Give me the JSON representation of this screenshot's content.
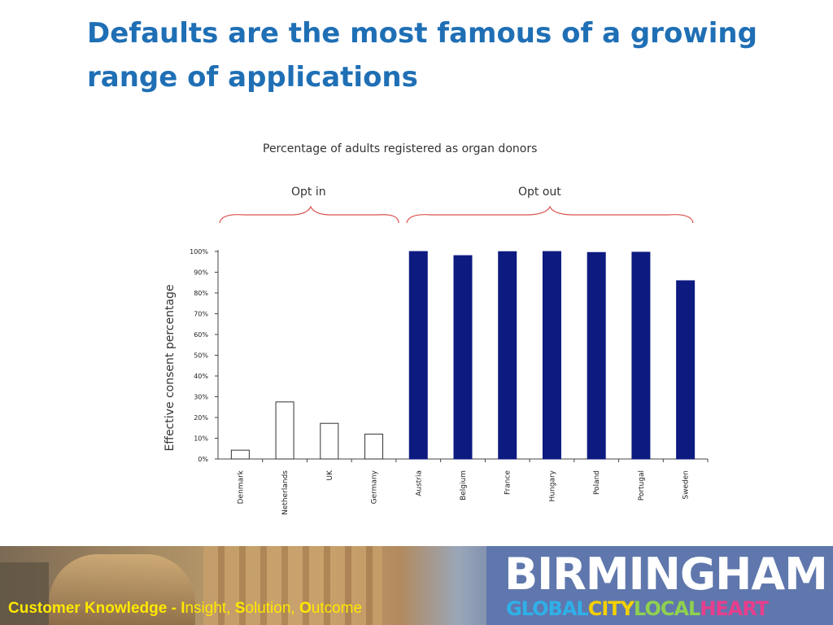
{
  "slide": {
    "title": "Defaults are the most famous of a growing range of applications"
  },
  "chart_data": {
    "type": "bar",
    "title": "Percentage of adults registered as organ donors",
    "ylabel": "Effective consent percentage",
    "xlabel": "",
    "ylim": [
      0,
      100
    ],
    "yticks": [
      "0%",
      "10%",
      "20%",
      "30%",
      "40%",
      "50%",
      "60%",
      "70%",
      "80%",
      "90%",
      "100%"
    ],
    "groups": [
      {
        "label": "Opt in",
        "categories": [
          "Denmark",
          "Netherlands",
          "UK",
          "Germany"
        ]
      },
      {
        "label": "Opt out",
        "categories": [
          "Austria",
          "Belgium",
          "France",
          "Hungary",
          "Poland",
          "Portugal",
          "Sweden"
        ]
      }
    ],
    "categories": [
      "Denmark",
      "Netherlands",
      "UK",
      "Germany",
      "Austria",
      "Belgium",
      "France",
      "Hungary",
      "Poland",
      "Portugal",
      "Sweden"
    ],
    "values": [
      4.25,
      27.5,
      17.17,
      12,
      99.98,
      98,
      99.91,
      99.97,
      99.5,
      99.64,
      85.9
    ],
    "colors": {
      "opt_in": "#ffffff",
      "opt_out": "#0d1a80",
      "opt_in_border": "#333333"
    }
  },
  "footer": {
    "strap": {
      "part1": "Customer Knowledge - ",
      "i_bold": "I",
      "i_rest": "nsight, ",
      "s_bold": "S",
      "s_rest": "olution, ",
      "o_bold": "O",
      "o_rest": "utcome"
    },
    "brand": {
      "name": "BIRMINGHAM",
      "tag_global": "GLOBAL",
      "tag_city": "CITY",
      "tag_local": "LOCAL",
      "tag_heart": "HEART"
    }
  }
}
